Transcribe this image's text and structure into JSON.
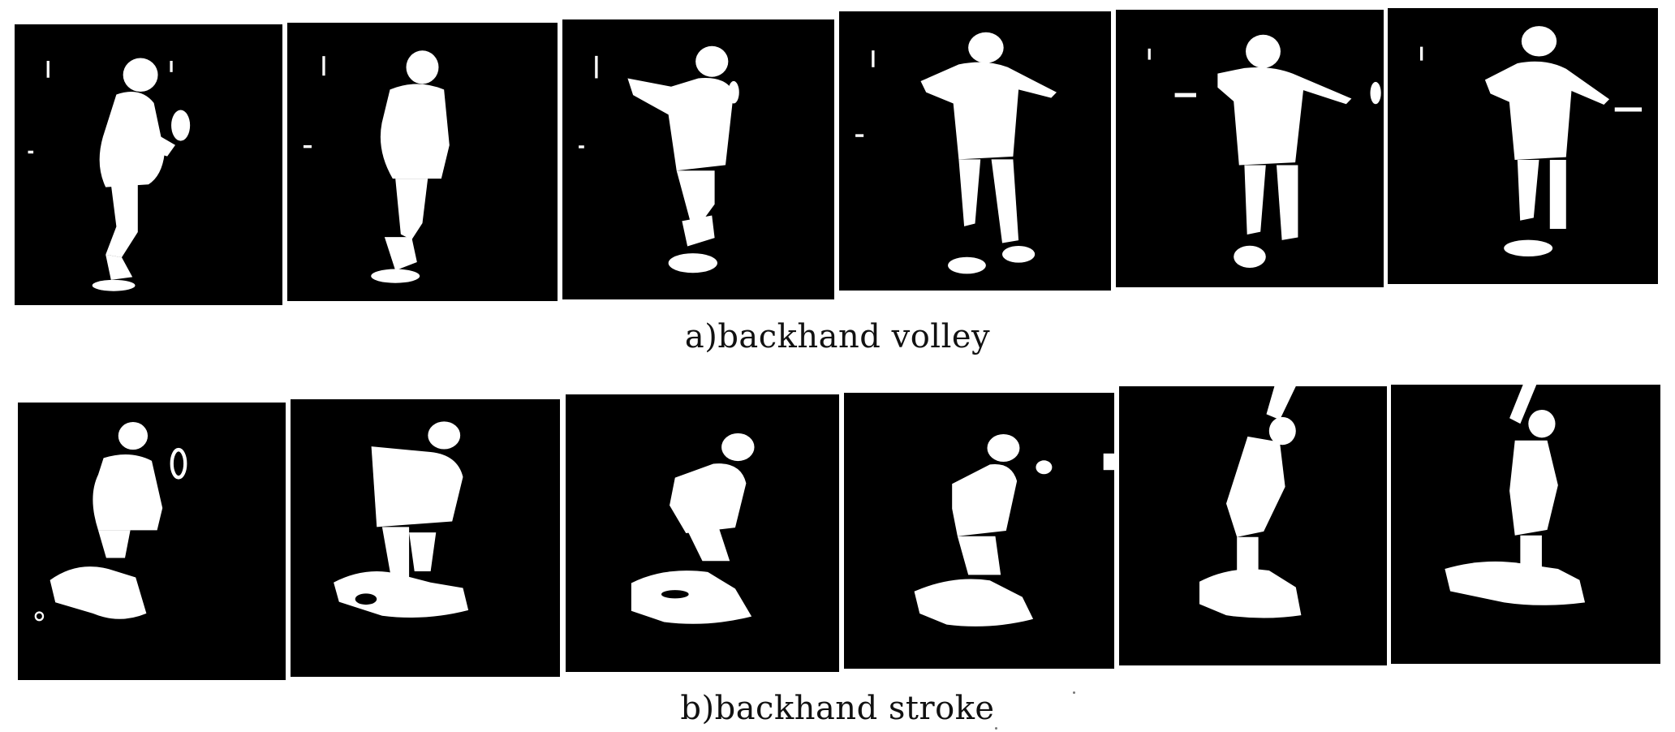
{
  "captions": {
    "a": "a)backhand volley",
    "b": "b)backhand stroke"
  }
}
